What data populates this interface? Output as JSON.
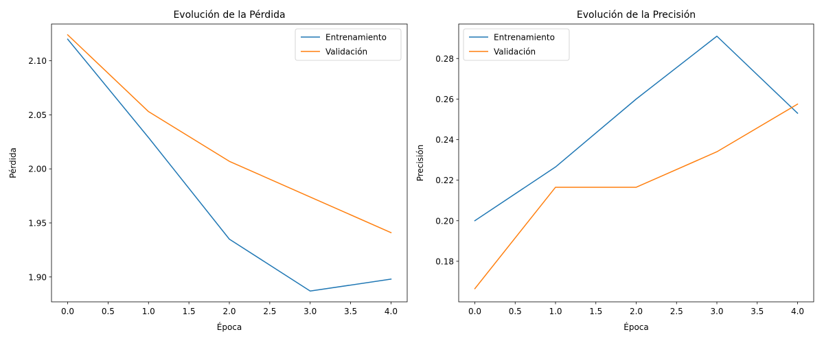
{
  "chart_data": [
    {
      "type": "line",
      "title": "Evolución de la Pérdida",
      "xlabel": "Época",
      "ylabel": "Pérdida",
      "x": [
        0,
        1,
        2,
        3,
        4
      ],
      "xlim": [
        -0.2,
        4.2
      ],
      "ylim": [
        1.877,
        2.134
      ],
      "xticks": [
        "0.0",
        "0.5",
        "1.0",
        "1.5",
        "2.0",
        "2.5",
        "3.0",
        "3.5",
        "4.0"
      ],
      "yticks": [
        "1.90",
        "1.95",
        "2.00",
        "2.05",
        "2.10"
      ],
      "grid": false,
      "legend_position": "upper right",
      "series": [
        {
          "name": "Entrenamiento",
          "color": "#1f77b4",
          "values": [
            2.12,
            2.029,
            1.935,
            1.887,
            1.898
          ]
        },
        {
          "name": "Validación",
          "color": "#ff7f0e",
          "values": [
            2.124,
            2.053,
            2.007,
            1.974,
            1.941
          ]
        }
      ]
    },
    {
      "type": "line",
      "title": "Evolución de la Precisión",
      "xlabel": "Época",
      "ylabel": "Precisión",
      "x": [
        0,
        1,
        2,
        3,
        4
      ],
      "xlim": [
        -0.2,
        4.2
      ],
      "ylim": [
        0.16,
        0.297
      ],
      "xticks": [
        "0.0",
        "0.5",
        "1.0",
        "1.5",
        "2.0",
        "2.5",
        "3.0",
        "3.5",
        "4.0"
      ],
      "yticks": [
        "0.18",
        "0.20",
        "0.22",
        "0.24",
        "0.26",
        "0.28"
      ],
      "grid": false,
      "legend_position": "upper left",
      "series": [
        {
          "name": "Entrenamiento",
          "color": "#1f77b4",
          "values": [
            0.2,
            0.2265,
            0.26,
            0.291,
            0.253
          ]
        },
        {
          "name": "Validación",
          "color": "#ff7f0e",
          "values": [
            0.1665,
            0.2165,
            0.2165,
            0.234,
            0.2575
          ]
        }
      ]
    }
  ]
}
